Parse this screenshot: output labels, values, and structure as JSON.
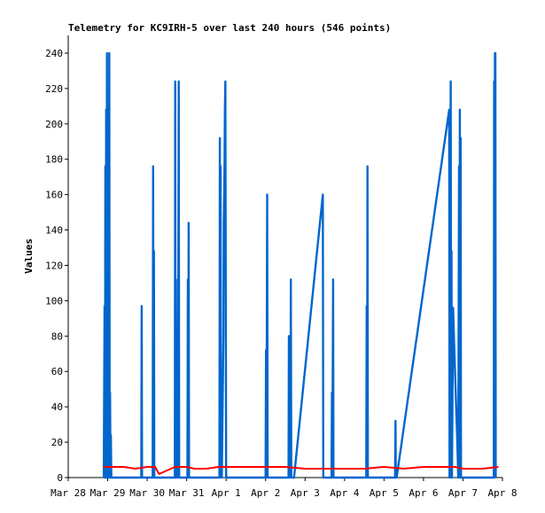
{
  "chart_data": {
    "type": "line",
    "title": "Telemetry for KC9IRH-5 over last 240 hours (546 points)",
    "xlabel": "",
    "ylabel": "Values",
    "x_tick_labels": [
      "Mar 28",
      "Mar 29",
      "Mar 30",
      "Mar 31",
      "Apr 1",
      "Apr 2",
      "Apr 3",
      "Apr 4",
      "Apr 5",
      "Apr 6",
      "Apr 7",
      "Apr 8"
    ],
    "y_ticks": [
      0,
      20,
      40,
      60,
      80,
      100,
      120,
      140,
      160,
      180,
      200,
      220,
      240
    ],
    "xlim_days": [
      0,
      11
    ],
    "ylim": [
      0,
      250
    ],
    "grid": false,
    "legend": "none",
    "series": [
      {
        "color": "#0066cc",
        "points": [
          [
            0.9,
            0
          ],
          [
            0.92,
            97
          ],
          [
            0.93,
            0
          ],
          [
            0.94,
            176
          ],
          [
            0.95,
            0
          ],
          [
            0.96,
            208
          ],
          [
            0.97,
            0
          ],
          [
            0.98,
            240
          ],
          [
            0.99,
            0
          ],
          [
            1.0,
            192
          ],
          [
            1.01,
            0
          ],
          [
            1.02,
            208
          ],
          [
            1.03,
            0
          ],
          [
            1.04,
            240
          ],
          [
            1.05,
            0
          ],
          [
            1.06,
            48
          ],
          [
            1.07,
            0
          ],
          [
            1.08,
            24
          ],
          [
            1.09,
            0
          ],
          [
            1.85,
            0
          ],
          [
            1.86,
            97
          ],
          [
            1.87,
            0
          ],
          [
            2.14,
            0
          ],
          [
            2.15,
            176
          ],
          [
            2.16,
            0
          ],
          [
            2.17,
            128
          ],
          [
            2.18,
            0
          ],
          [
            2.7,
            0
          ],
          [
            2.71,
            224
          ],
          [
            2.72,
            0
          ],
          [
            2.73,
            112
          ],
          [
            2.74,
            0
          ],
          [
            2.77,
            16
          ],
          [
            2.78,
            0
          ],
          [
            2.8,
            224
          ],
          [
            2.81,
            0
          ],
          [
            3.02,
            0
          ],
          [
            3.03,
            112
          ],
          [
            3.04,
            0
          ],
          [
            3.05,
            144
          ],
          [
            3.06,
            0
          ],
          [
            3.83,
            0
          ],
          [
            3.84,
            192
          ],
          [
            3.85,
            16
          ],
          [
            3.86,
            176
          ],
          [
            3.87,
            0
          ],
          [
            3.88,
            48
          ],
          [
            3.89,
            0
          ],
          [
            3.93,
            80
          ],
          [
            3.94,
            144
          ],
          [
            3.96,
            176
          ],
          [
            3.97,
            208
          ],
          [
            3.98,
            224
          ],
          [
            4.0,
            0
          ],
          [
            5.0,
            0
          ],
          [
            5.01,
            72
          ],
          [
            5.02,
            0
          ],
          [
            5.04,
            160
          ],
          [
            5.05,
            0
          ],
          [
            5.58,
            0
          ],
          [
            5.59,
            80
          ],
          [
            5.6,
            0
          ],
          [
            5.63,
            20
          ],
          [
            5.64,
            112
          ],
          [
            5.65,
            0
          ],
          [
            5.72,
            0
          ],
          [
            6.45,
            160
          ],
          [
            6.46,
            0
          ],
          [
            6.67,
            0
          ],
          [
            6.68,
            48
          ],
          [
            6.69,
            0
          ],
          [
            6.71,
            112
          ],
          [
            6.72,
            0
          ],
          [
            7.55,
            0
          ],
          [
            7.56,
            97
          ],
          [
            7.57,
            0
          ],
          [
            7.58,
            176
          ],
          [
            7.59,
            0
          ],
          [
            8.28,
            0
          ],
          [
            8.29,
            32
          ],
          [
            8.3,
            0
          ],
          [
            8.32,
            0
          ],
          [
            9.65,
            208
          ],
          [
            9.66,
            0
          ],
          [
            9.69,
            224
          ],
          [
            9.7,
            0
          ],
          [
            9.71,
            128
          ],
          [
            9.72,
            0
          ],
          [
            9.75,
            96
          ],
          [
            9.78,
            72
          ],
          [
            9.85,
            24
          ],
          [
            9.88,
            0
          ],
          [
            9.9,
            176
          ],
          [
            9.91,
            0
          ],
          [
            9.92,
            208
          ],
          [
            9.93,
            0
          ],
          [
            9.94,
            192
          ],
          [
            9.95,
            0
          ],
          [
            10.78,
            0
          ],
          [
            10.79,
            224
          ],
          [
            10.8,
            0
          ],
          [
            10.81,
            240
          ],
          [
            10.82,
            240
          ],
          [
            10.83,
            0
          ]
        ]
      },
      {
        "color": "#ff0000",
        "points": [
          [
            0.9,
            6
          ],
          [
            1.1,
            6
          ],
          [
            1.4,
            6
          ],
          [
            1.7,
            5
          ],
          [
            2.0,
            6
          ],
          [
            2.2,
            6
          ],
          [
            2.3,
            2
          ],
          [
            2.5,
            4
          ],
          [
            2.7,
            6
          ],
          [
            3.0,
            6
          ],
          [
            3.2,
            5
          ],
          [
            3.5,
            5
          ],
          [
            3.8,
            6
          ],
          [
            4.0,
            6
          ],
          [
            4.5,
            6
          ],
          [
            5.0,
            6
          ],
          [
            5.5,
            6
          ],
          [
            6.0,
            5
          ],
          [
            6.5,
            5
          ],
          [
            7.0,
            5
          ],
          [
            7.5,
            5
          ],
          [
            8.0,
            6
          ],
          [
            8.5,
            5
          ],
          [
            9.0,
            6
          ],
          [
            9.5,
            6
          ],
          [
            9.8,
            6
          ],
          [
            10.0,
            5
          ],
          [
            10.5,
            5
          ],
          [
            10.9,
            6
          ]
        ]
      }
    ]
  }
}
